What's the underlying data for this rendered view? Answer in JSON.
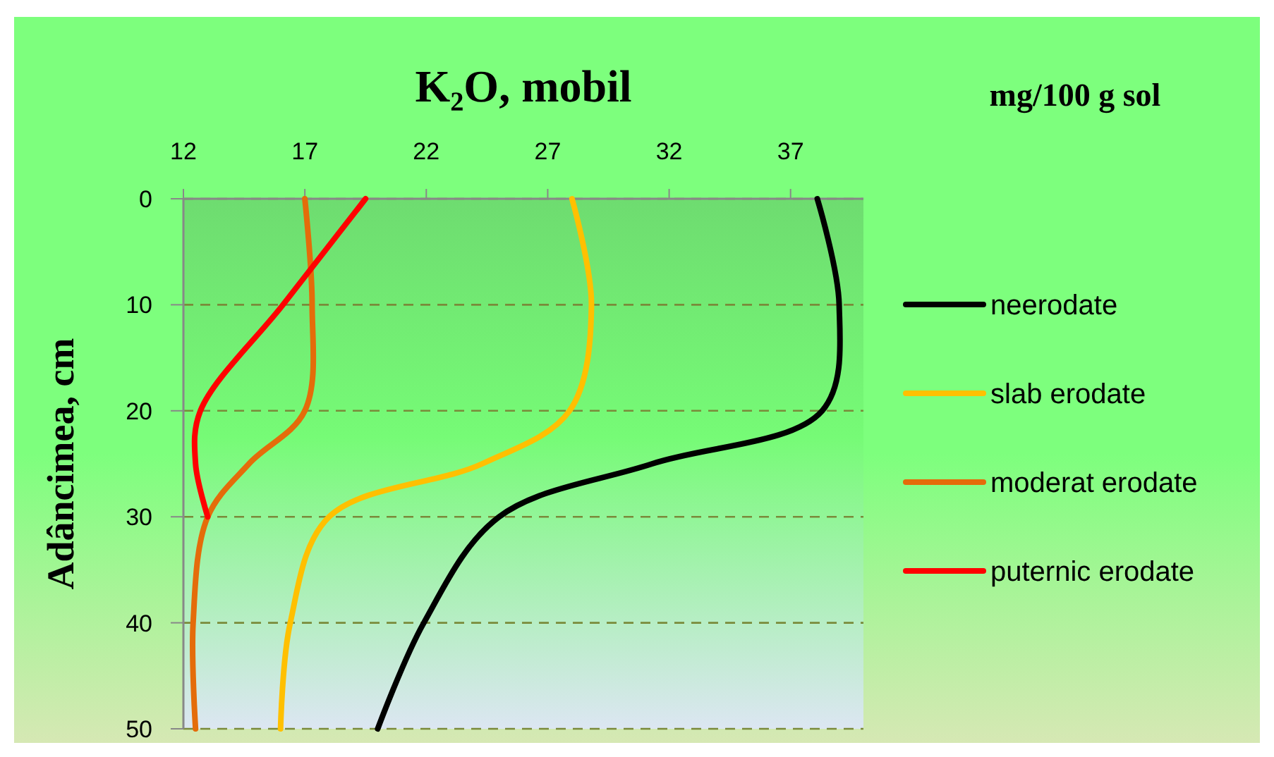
{
  "chart_data": {
    "type": "line",
    "title": "K₂O, mobil",
    "ylabel": "Adâncimea, cm",
    "annotations": [
      "mg/100 g sol"
    ],
    "xlim": [
      12,
      40
    ],
    "xticks": [
      12,
      17,
      22,
      27,
      32,
      37
    ],
    "ylim": [
      50,
      0
    ],
    "yticks": [
      0,
      10,
      20,
      30,
      40,
      50
    ],
    "grid": "y",
    "legend": "right",
    "marker": "none",
    "line_style": "solid",
    "series": [
      {
        "name": "neerodate",
        "color": "#000000",
        "x": [
          38.1,
          39.0,
          38.3,
          31.3,
          25.0,
          21.9,
          20.0
        ],
        "values": [
          0,
          10,
          20,
          25,
          30,
          40,
          50
        ]
      },
      {
        "name": "slab erodate",
        "color": "#ffc000",
        "x": [
          28.0,
          28.8,
          27.9,
          24.3,
          18.0,
          16.4,
          16.0
        ],
        "values": [
          0,
          10,
          20,
          25,
          30,
          40,
          50
        ]
      },
      {
        "name": "moderat erodate",
        "color": "#e46c0a",
        "x": [
          17.0,
          17.3,
          17.0,
          14.7,
          13.0,
          12.4,
          12.5
        ],
        "values": [
          0,
          10,
          20,
          25,
          30,
          40,
          50
        ]
      },
      {
        "name": "puternic erodate",
        "color": "#ff0000",
        "x": [
          19.5,
          16.1,
          12.7,
          12.5,
          13.0
        ],
        "values": [
          0,
          10,
          20,
          25,
          30
        ]
      }
    ]
  }
}
